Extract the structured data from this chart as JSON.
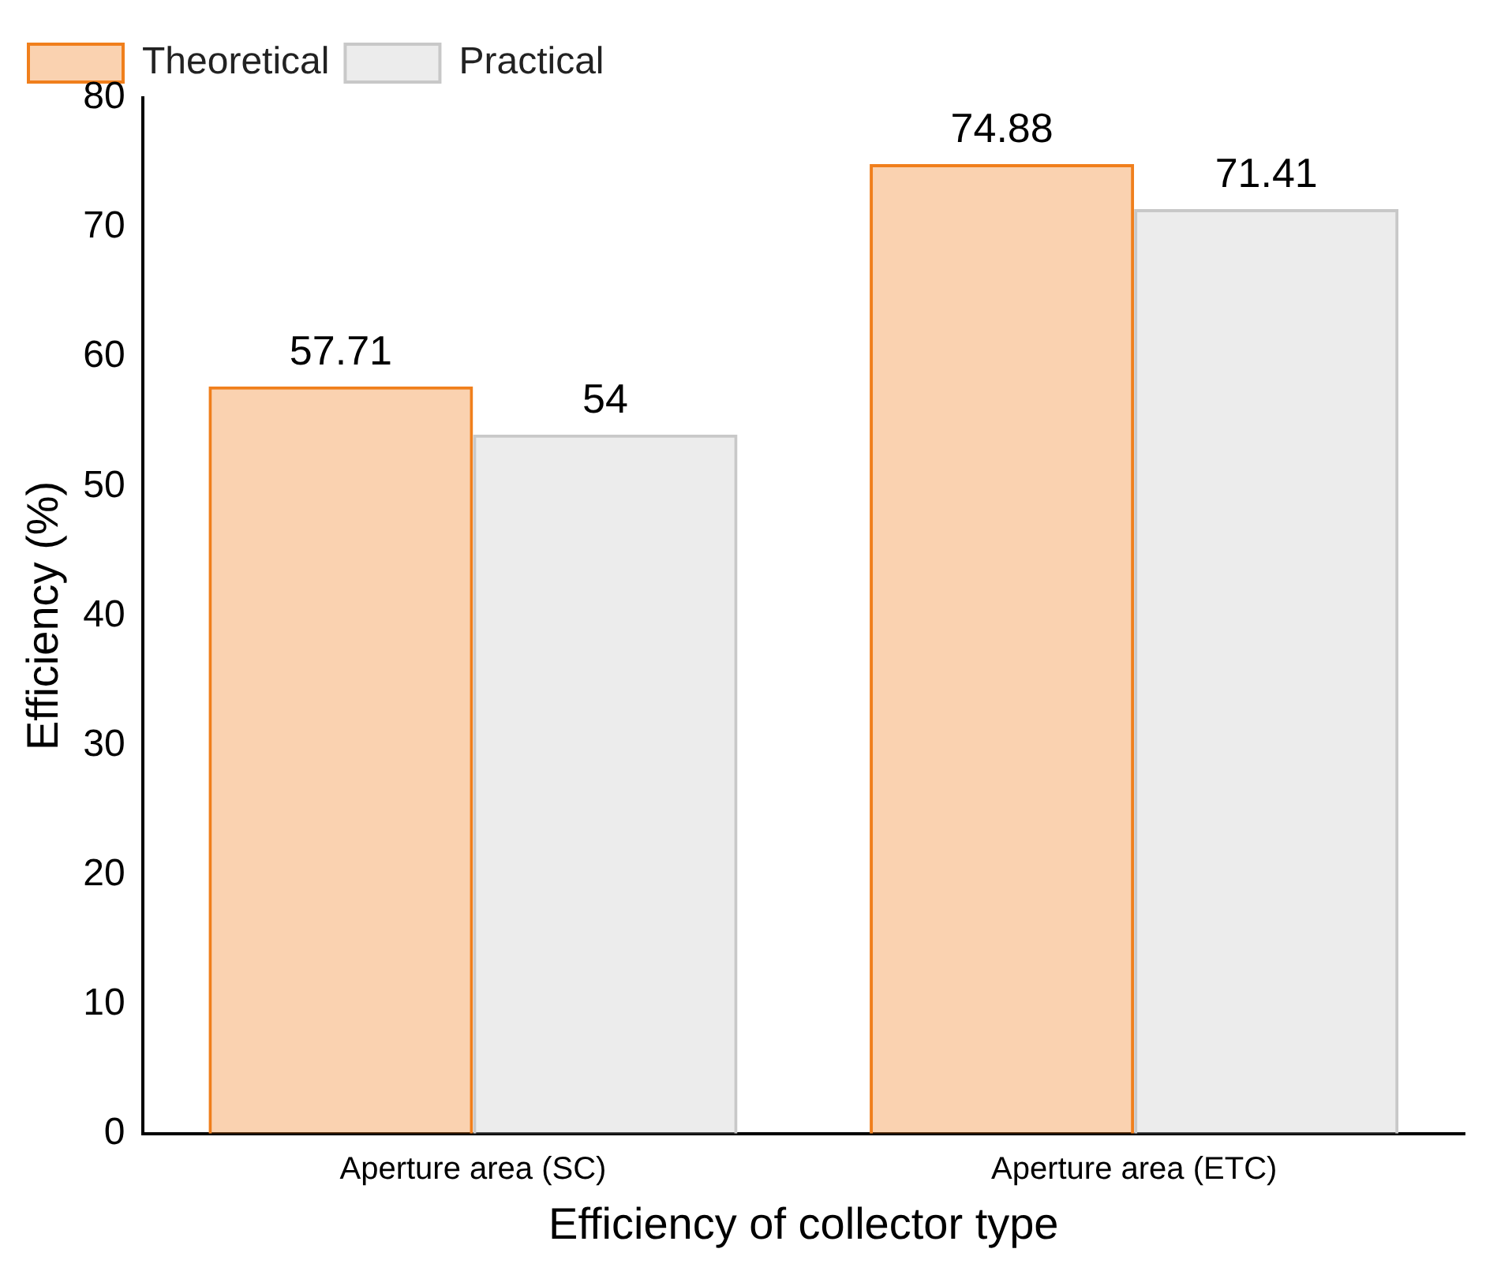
{
  "chart_data": {
    "type": "bar",
    "xlabel": "Efficiency of collector type",
    "ylabel": "Efficiency (%)",
    "categories": [
      "Aperture area (SC)",
      "Aperture area (ETC)"
    ],
    "series": [
      {
        "name": "Theoretical",
        "color": "#f07f1c",
        "values": [
          57.71,
          74.88
        ]
      },
      {
        "name": "Practical",
        "color": "#c8c8c8",
        "values": [
          54,
          71.41
        ]
      }
    ],
    "ylim": [
      0,
      80
    ],
    "yticks": [
      0,
      10,
      20,
      30,
      40,
      50,
      60,
      70,
      80
    ],
    "grid": false,
    "legend": "top left",
    "data_labels": true
  }
}
